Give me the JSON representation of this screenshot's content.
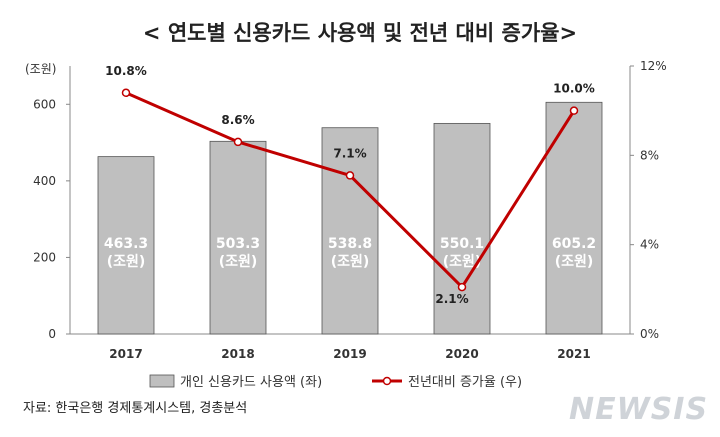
{
  "chart_data": {
    "type": "bar",
    "title": "< 연도별 신용카드 사용액 및 전년 대비 증가율>",
    "categories": [
      "2017",
      "2018",
      "2019",
      "2020",
      "2021"
    ],
    "left_axis": {
      "unit_label": "(조원)",
      "ticks": [
        "0",
        "200",
        "400",
        "600"
      ],
      "ylim": [
        0,
        700
      ]
    },
    "right_axis": {
      "ticks": [
        "0%",
        "4%",
        "8%",
        "12%"
      ],
      "ylim": [
        0,
        12
      ]
    },
    "series": [
      {
        "name": "개인 신용카드 사용액 (좌)",
        "type": "bar",
        "values": [
          463.3,
          503.3,
          538.8,
          550.1,
          605.2
        ],
        "labels": [
          [
            "463.3",
            "(조원)"
          ],
          [
            "503.3",
            "(조원)"
          ],
          [
            "538.8",
            "(조원)"
          ],
          [
            "550.1",
            "(조원)"
          ],
          [
            "605.2",
            "(조원)"
          ]
        ],
        "color": "#bfbfbf"
      },
      {
        "name": "전년대비 증가율 (우)",
        "type": "line",
        "values": [
          10.8,
          8.6,
          7.1,
          2.1,
          10.0
        ],
        "labels": [
          "10.8%",
          "8.6%",
          "7.1%",
          "2.1%",
          "10.0%"
        ],
        "color": "#c00000"
      }
    ],
    "legend": "bottom",
    "grid": false
  },
  "source": "자료: 한국은행 경제통계시스템, 경총분석",
  "watermark": "NEWSIS"
}
